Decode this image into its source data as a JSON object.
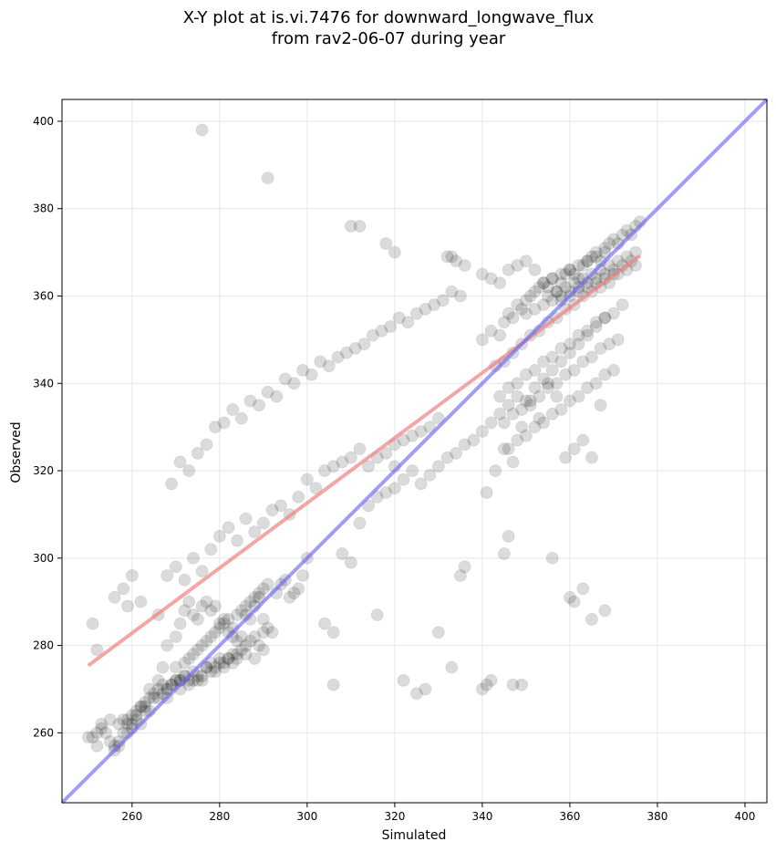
{
  "chart_data": {
    "type": "scatter",
    "title": "X-Y plot at is.vi.7476 for downward_longwave_flux",
    "subtitle": "from rav2-06-07 during year",
    "xlabel": "Simulated",
    "ylabel": "Observed",
    "xlim": [
      244,
      405
    ],
    "ylim": [
      244,
      405
    ],
    "xticks": [
      260,
      280,
      300,
      320,
      340,
      360,
      380,
      400
    ],
    "yticks": [
      260,
      280,
      300,
      320,
      340,
      360,
      380,
      400
    ],
    "grid": true,
    "colors": {
      "points": "#000000",
      "regression_line": "#f08080",
      "one_to_one_line": "#6a6af5",
      "grid": "#e6e6e6"
    },
    "series": [
      {
        "type": "scatter",
        "x": [
          250,
          251,
          252,
          253,
          254,
          255,
          256,
          257,
          258,
          259,
          260,
          261,
          262,
          263,
          264,
          265,
          266,
          267,
          268,
          269,
          270,
          271,
          272,
          273,
          274,
          275,
          276,
          277,
          278,
          279,
          280,
          281,
          282,
          283,
          284,
          285,
          286,
          287,
          288,
          289,
          290,
          252,
          253,
          255,
          257,
          258,
          259,
          260,
          261,
          262,
          263,
          264,
          266,
          267,
          268,
          269,
          270,
          271,
          272,
          273,
          274,
          275,
          276,
          277,
          278,
          279,
          280,
          281,
          282,
          283,
          284,
          286,
          288,
          290,
          251,
          252,
          256,
          257,
          259,
          260,
          261,
          262,
          263,
          264,
          265,
          266,
          267,
          268,
          270,
          271,
          272,
          273,
          274,
          275,
          276,
          277,
          278,
          279,
          280,
          281,
          282,
          283,
          284,
          285,
          286,
          287,
          288,
          289,
          290,
          291,
          256,
          258,
          259,
          260,
          262,
          266,
          268,
          270,
          271,
          272,
          273,
          274,
          275,
          276,
          277,
          278,
          279,
          280,
          281,
          282,
          283,
          284,
          285,
          286,
          287,
          288,
          289,
          290,
          291,
          292,
          293,
          294,
          295,
          296,
          297,
          298,
          299,
          268,
          270,
          272,
          274,
          276,
          278,
          280,
          282,
          284,
          286,
          288,
          290,
          292,
          294,
          296,
          298,
          300,
          302,
          304,
          306,
          308,
          310,
          312,
          314,
          316,
          318,
          320,
          322,
          324,
          326,
          328,
          330,
          269,
          271,
          273,
          275,
          277,
          279,
          281,
          283,
          285,
          287,
          289,
          291,
          293,
          295,
          297,
          299,
          301,
          303,
          305,
          307,
          309,
          311,
          313,
          315,
          317,
          319,
          321,
          323,
          325,
          327,
          329,
          331,
          333,
          335,
          276,
          291,
          310,
          312,
          318,
          320,
          332,
          333,
          334,
          336,
          340,
          342,
          344,
          346,
          348,
          350,
          352,
          300,
          304,
          306,
          308,
          310,
          312,
          314,
          316,
          318,
          320,
          322,
          324,
          326,
          328,
          330,
          332,
          334,
          336,
          338,
          340,
          342,
          344,
          346,
          348,
          350,
          352,
          354,
          356,
          358,
          360,
          362,
          364,
          366,
          368,
          306,
          316,
          320,
          322,
          325,
          327,
          330,
          333,
          335,
          336,
          340,
          341,
          342,
          345,
          346,
          347,
          349,
          356,
          360,
          361,
          363,
          365,
          368,
          340,
          342,
          344,
          345,
          346,
          347,
          348,
          349,
          350,
          351,
          352,
          353,
          354,
          355,
          356,
          357,
          358,
          359,
          360,
          361,
          362,
          363,
          364,
          365,
          366,
          367,
          368,
          369,
          370,
          371,
          372,
          373,
          374,
          375,
          376,
          343,
          345,
          347,
          349,
          351,
          353,
          355,
          357,
          359,
          361,
          363,
          365,
          367,
          369,
          371,
          373,
          375,
          344,
          346,
          348,
          350,
          352,
          354,
          356,
          358,
          360,
          362,
          364,
          366,
          368,
          370,
          372,
          345,
          347,
          349,
          351,
          353,
          355,
          357,
          359,
          361,
          363,
          365,
          367,
          369,
          371,
          346,
          348,
          350,
          352,
          354,
          356,
          358,
          360,
          362,
          364,
          366,
          368,
          370,
          350,
          352,
          354,
          356,
          358,
          360,
          362,
          364,
          366,
          368,
          370,
          372,
          374,
          354,
          356,
          358,
          360,
          362,
          364,
          366,
          368,
          355,
          357,
          359,
          361,
          363,
          365,
          367,
          369,
          371,
          373,
          375,
          358,
          360,
          362,
          364,
          366,
          368,
          370,
          341,
          343,
          345,
          347,
          349,
          351,
          353,
          355,
          357,
          359,
          361,
          363,
          365,
          367
        ],
        "y": [
          259,
          259,
          257,
          261,
          260,
          258,
          257,
          262,
          263,
          262,
          264,
          265,
          266,
          267,
          268,
          269,
          270,
          269,
          270,
          271,
          272,
          272,
          273,
          272,
          274,
          273,
          272,
          275,
          276,
          274,
          277,
          276,
          277,
          278,
          278,
          279,
          280,
          281,
          282,
          280,
          283,
          279,
          262,
          263,
          258,
          260,
          263,
          261,
          263,
          262,
          266,
          265,
          268,
          271,
          268,
          271,
          272,
          270,
          273,
          271,
          272,
          272,
          273,
          275,
          274,
          275,
          276,
          275,
          277,
          276,
          277,
          278,
          277,
          279,
          285,
          260,
          256,
          257,
          260,
          262,
          264,
          266,
          265,
          270,
          268,
          272,
          275,
          270,
          275,
          272,
          276,
          277,
          278,
          279,
          280,
          281,
          282,
          283,
          284,
          285,
          286,
          284,
          287,
          288,
          289,
          290,
          291,
          292,
          293,
          294,
          291,
          293,
          289,
          296,
          290,
          287,
          280,
          282,
          285,
          288,
          290,
          287,
          286,
          289,
          290,
          288,
          289,
          285,
          286,
          283,
          282,
          281,
          282,
          287,
          286,
          289,
          291,
          286,
          284,
          283,
          292,
          294,
          295,
          291,
          292,
          293,
          296,
          296,
          298,
          295,
          300,
          297,
          302,
          305,
          307,
          304,
          309,
          306,
          308,
          311,
          312,
          310,
          314,
          318,
          316,
          320,
          321,
          322,
          323,
          325,
          321,
          323,
          324,
          326,
          327,
          328,
          329,
          330,
          332,
          317,
          322,
          320,
          324,
          326,
          330,
          331,
          334,
          332,
          336,
          335,
          338,
          337,
          341,
          340,
          343,
          342,
          345,
          344,
          346,
          347,
          348,
          349,
          351,
          352,
          353,
          355,
          354,
          356,
          357,
          358,
          359,
          361,
          360,
          398,
          387,
          376,
          376,
          372,
          370,
          369,
          369,
          368,
          367,
          365,
          364,
          363,
          366,
          367,
          368,
          366,
          300,
          285,
          271,
          301,
          299,
          308,
          312,
          314,
          315,
          316,
          318,
          320,
          317,
          319,
          321,
          323,
          324,
          326,
          327,
          329,
          331,
          333,
          335,
          337,
          336,
          339,
          341,
          343,
          345,
          347,
          349,
          351,
          353,
          355,
          283,
          287,
          321,
          272,
          269,
          270,
          283,
          275,
          296,
          298,
          270,
          271,
          272,
          301,
          305,
          271,
          271,
          300,
          291,
          290,
          293,
          286,
          288,
          350,
          352,
          351,
          354,
          356,
          355,
          358,
          357,
          359,
          360,
          361,
          362,
          363,
          362,
          364,
          361,
          363,
          365,
          366,
          365,
          364,
          367,
          368,
          369,
          370,
          368,
          371,
          372,
          373,
          372,
          374,
          375,
          374,
          376,
          377,
          344,
          345,
          347,
          349,
          351,
          352,
          354,
          355,
          357,
          358,
          360,
          361,
          362,
          363,
          365,
          366,
          367,
          337,
          339,
          340,
          342,
          343,
          345,
          346,
          348,
          349,
          351,
          352,
          354,
          355,
          356,
          358,
          331,
          333,
          334,
          336,
          337,
          339,
          340,
          342,
          343,
          345,
          346,
          348,
          349,
          350,
          325,
          327,
          328,
          330,
          331,
          333,
          334,
          336,
          337,
          339,
          340,
          342,
          343,
          356,
          357,
          358,
          359,
          360,
          361,
          362,
          363,
          364,
          365,
          366,
          367,
          368,
          363,
          364,
          365,
          366,
          367,
          368,
          369,
          370,
          360,
          361,
          362,
          363,
          364,
          365,
          366,
          367,
          368,
          369,
          370,
          359,
          360,
          361,
          362,
          363,
          364,
          365,
          315,
          320,
          325,
          322,
          330,
          335,
          332,
          340,
          337,
          323,
          325,
          327,
          323,
          335
        ]
      },
      {
        "name": "",
        "type": "line",
        "role": "regression",
        "x": [
          250,
          376
        ],
        "y": [
          275.4,
          369.2
        ]
      },
      {
        "name": "",
        "type": "line",
        "role": "one-to-one",
        "x": [
          244,
          405
        ],
        "y": [
          244,
          405
        ]
      }
    ]
  }
}
